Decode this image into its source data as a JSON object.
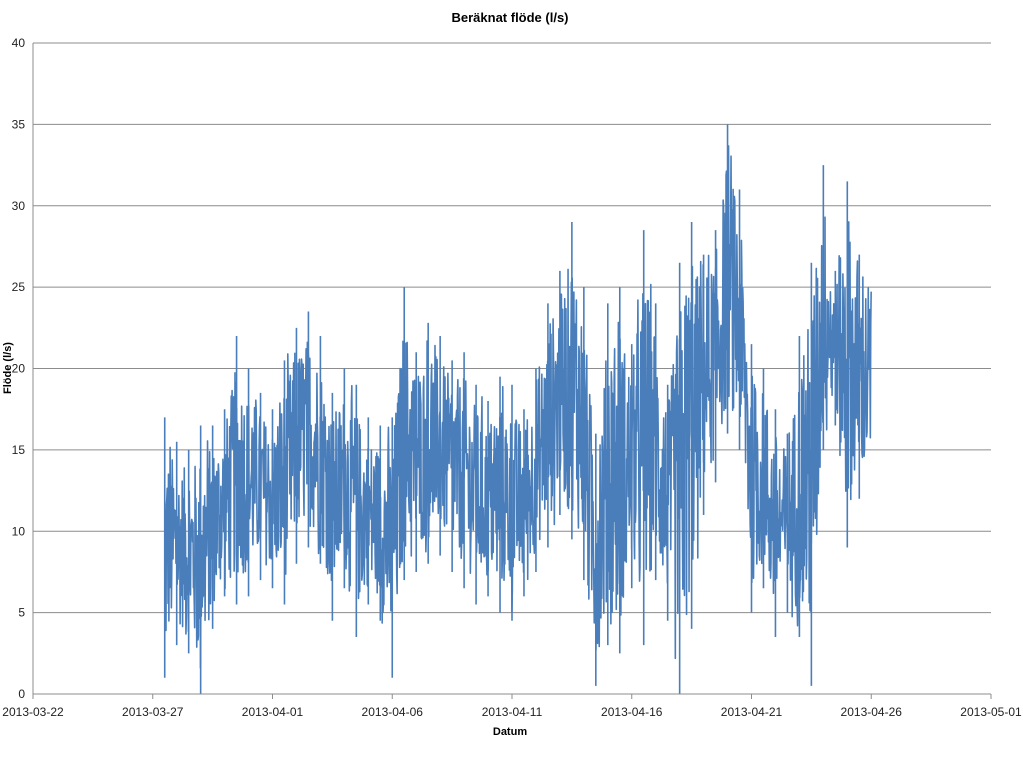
{
  "chart_data": {
    "type": "line",
    "title": "Beräknat flöde (l/s)",
    "xlabel": "Datum",
    "ylabel": "Flöde (l/s)",
    "x_axis": "date",
    "xlim": [
      "2013-03-22",
      "2013-05-01"
    ],
    "xticks": [
      "2013-03-22",
      "2013-03-27",
      "2013-04-01",
      "2013-04-06",
      "2013-04-11",
      "2013-04-16",
      "2013-04-21",
      "2013-04-26",
      "2013-05-01"
    ],
    "ylim": [
      0,
      40
    ],
    "yticks": [
      0,
      5,
      10,
      15,
      20,
      25,
      30,
      35,
      40
    ],
    "grid": "horizontal",
    "legend": "none",
    "series_color": "#4a7ebb",
    "series": [
      {
        "x": [
          "2013-03-27T12:00",
          "2013-03-28T00:00",
          "2013-03-28T12:00",
          "2013-03-29T00:00",
          "2013-03-29T12:00",
          "2013-03-30T00:00",
          "2013-03-30T12:00",
          "2013-03-31T00:00",
          "2013-03-31T12:00",
          "2013-04-01T00:00",
          "2013-04-01T12:00",
          "2013-04-02T00:00",
          "2013-04-02T12:00",
          "2013-04-03T00:00",
          "2013-04-03T12:00",
          "2013-04-04T00:00",
          "2013-04-04T12:00",
          "2013-04-05T00:00",
          "2013-04-05T12:00",
          "2013-04-06T00:00",
          "2013-04-06T12:00",
          "2013-04-07T00:00",
          "2013-04-07T12:00",
          "2013-04-08T00:00",
          "2013-04-08T12:00",
          "2013-04-09T00:00",
          "2013-04-09T12:00",
          "2013-04-10T00:00",
          "2013-04-10T12:00",
          "2013-04-11T00:00",
          "2013-04-11T12:00",
          "2013-04-12T00:00",
          "2013-04-12T12:00",
          "2013-04-13T00:00",
          "2013-04-13T12:00",
          "2013-04-14T00:00",
          "2013-04-14T12:00",
          "2013-04-15T00:00",
          "2013-04-15T12:00",
          "2013-04-16T00:00",
          "2013-04-16T12:00",
          "2013-04-17T00:00",
          "2013-04-17T12:00",
          "2013-04-18T00:00",
          "2013-04-18T12:00",
          "2013-04-19T00:00",
          "2013-04-19T12:00",
          "2013-04-20T00:00",
          "2013-04-20T12:00",
          "2013-04-21T00:00",
          "2013-04-21T12:00",
          "2013-04-22T00:00",
          "2013-04-22T12:00",
          "2013-04-23T00:00",
          "2013-04-23T12:00",
          "2013-04-24T00:00",
          "2013-04-24T12:00",
          "2013-04-25T00:00",
          "2013-04-25T12:00"
        ],
        "min": [
          1.0,
          3.0,
          2.5,
          0.0,
          4.0,
          6.0,
          5.5,
          6.0,
          7.0,
          6.5,
          5.5,
          8.0,
          9.0,
          8.0,
          4.5,
          6.5,
          3.5,
          5.5,
          4.5,
          1.0,
          7.0,
          7.5,
          8.0,
          8.5,
          7.5,
          6.5,
          5.5,
          6.0,
          5.0,
          4.5,
          6.0,
          7.5,
          9.0,
          11.0,
          9.5,
          7.0,
          0.5,
          3.0,
          2.5,
          6.5,
          3.0,
          7.0,
          4.5,
          0.0,
          4.0,
          11.0,
          13.0,
          16.0,
          15.0,
          5.0,
          6.5,
          3.5,
          5.0,
          3.5,
          0.5,
          15.0,
          16.5,
          9.0,
          12.0
        ],
        "max": [
          17.0,
          15.5,
          15.0,
          16.5,
          16.5,
          17.5,
          22.0,
          20.0,
          18.5,
          17.5,
          20.5,
          22.5,
          23.5,
          22.0,
          18.5,
          20.0,
          19.0,
          17.0,
          16.5,
          17.0,
          25.0,
          21.0,
          22.8,
          22.0,
          20.5,
          21.0,
          19.0,
          18.0,
          19.5,
          19.0,
          17.5,
          20.0,
          24.0,
          26.0,
          29.0,
          25.0,
          16.0,
          24.0,
          25.0,
          21.5,
          28.5,
          24.0,
          19.0,
          26.5,
          29.0,
          27.0,
          28.5,
          35.0,
          31.0,
          21.5,
          20.0,
          17.5,
          16.0,
          22.0,
          26.5,
          32.5,
          26.0,
          31.5,
          27.0
        ]
      }
    ]
  }
}
